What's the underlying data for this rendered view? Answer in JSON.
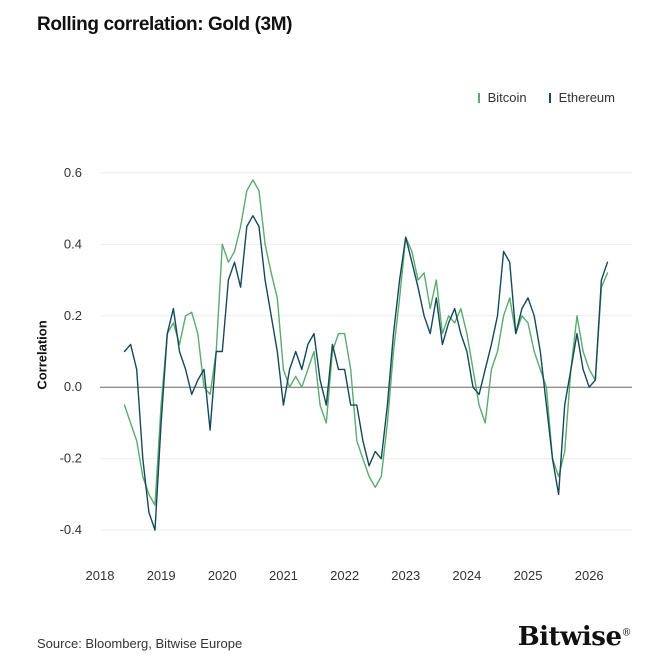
{
  "chart_data": {
    "type": "line",
    "title": "Rolling correlation: Gold (3M)",
    "ylabel": "Correlation",
    "xlabel": "",
    "ylim": [
      -0.45,
      0.65
    ],
    "xlim": [
      2018.0,
      2026.7
    ],
    "yticks": [
      "0.6",
      "0.4",
      "0.2",
      "0.0",
      "-0.2",
      "-0.4"
    ],
    "xticks": [
      "2018",
      "2019",
      "2020",
      "2021",
      "2022",
      "2023",
      "2024",
      "2025",
      "2026"
    ],
    "legend_position": "top-right",
    "grid": "horizontal",
    "series": [
      {
        "name": "Bitcoin",
        "color": "#5aab6e",
        "x": [
          2018.4,
          2018.5,
          2018.6,
          2018.7,
          2018.8,
          2018.9,
          2019.0,
          2019.1,
          2019.2,
          2019.3,
          2019.4,
          2019.5,
          2019.6,
          2019.7,
          2019.8,
          2019.9,
          2020.0,
          2020.1,
          2020.2,
          2020.3,
          2020.4,
          2020.5,
          2020.6,
          2020.7,
          2020.8,
          2020.9,
          2021.0,
          2021.1,
          2021.2,
          2021.3,
          2021.4,
          2021.5,
          2021.6,
          2021.7,
          2021.8,
          2021.9,
          2022.0,
          2022.1,
          2022.2,
          2022.3,
          2022.4,
          2022.5,
          2022.6,
          2022.7,
          2022.8,
          2022.9,
          2023.0,
          2023.1,
          2023.2,
          2023.3,
          2023.4,
          2023.5,
          2023.6,
          2023.7,
          2023.8,
          2023.9,
          2024.0,
          2024.1,
          2024.2,
          2024.3,
          2024.4,
          2024.5,
          2024.6,
          2024.7,
          2024.8,
          2024.9,
          2025.0,
          2025.1,
          2025.2,
          2025.3,
          2025.4,
          2025.5,
          2025.6,
          2025.7,
          2025.8,
          2025.9,
          2026.0,
          2026.1,
          2026.2,
          2026.3
        ],
        "values": [
          -0.05,
          -0.1,
          -0.15,
          -0.25,
          -0.3,
          -0.33,
          -0.05,
          0.15,
          0.18,
          0.12,
          0.2,
          0.21,
          0.15,
          0.0,
          -0.02,
          0.1,
          0.4,
          0.35,
          0.38,
          0.45,
          0.55,
          0.58,
          0.55,
          0.4,
          0.32,
          0.25,
          0.05,
          0.0,
          0.03,
          0.0,
          0.05,
          0.1,
          -0.05,
          -0.1,
          0.1,
          0.15,
          0.15,
          0.05,
          -0.15,
          -0.2,
          -0.25,
          -0.28,
          -0.25,
          -0.1,
          0.1,
          0.25,
          0.42,
          0.38,
          0.3,
          0.32,
          0.22,
          0.3,
          0.15,
          0.2,
          0.18,
          0.22,
          0.15,
          0.05,
          -0.05,
          -0.1,
          0.05,
          0.1,
          0.2,
          0.25,
          0.15,
          0.2,
          0.18,
          0.1,
          0.05,
          0.0,
          -0.2,
          -0.25,
          -0.18,
          0.05,
          0.2,
          0.1,
          0.05,
          0.02,
          0.28,
          0.32
        ]
      },
      {
        "name": "Ethereum",
        "color": "#14495a",
        "x": [
          2018.4,
          2018.5,
          2018.6,
          2018.7,
          2018.8,
          2018.9,
          2019.0,
          2019.1,
          2019.2,
          2019.3,
          2019.4,
          2019.5,
          2019.6,
          2019.7,
          2019.8,
          2019.9,
          2020.0,
          2020.1,
          2020.2,
          2020.3,
          2020.4,
          2020.5,
          2020.6,
          2020.7,
          2020.8,
          2020.9,
          2021.0,
          2021.1,
          2021.2,
          2021.3,
          2021.4,
          2021.5,
          2021.6,
          2021.7,
          2021.8,
          2021.9,
          2022.0,
          2022.1,
          2022.2,
          2022.3,
          2022.4,
          2022.5,
          2022.6,
          2022.7,
          2022.8,
          2022.9,
          2023.0,
          2023.1,
          2023.2,
          2023.3,
          2023.4,
          2023.5,
          2023.6,
          2023.7,
          2023.8,
          2023.9,
          2024.0,
          2024.1,
          2024.2,
          2024.3,
          2024.4,
          2024.5,
          2024.6,
          2024.7,
          2024.8,
          2024.9,
          2025.0,
          2025.1,
          2025.2,
          2025.3,
          2025.4,
          2025.5,
          2025.6,
          2025.7,
          2025.8,
          2025.9,
          2026.0,
          2026.1,
          2026.2,
          2026.3
        ],
        "values": [
          0.1,
          0.12,
          0.05,
          -0.2,
          -0.35,
          -0.4,
          -0.1,
          0.15,
          0.22,
          0.1,
          0.05,
          -0.02,
          0.02,
          0.05,
          -0.12,
          0.1,
          0.1,
          0.3,
          0.35,
          0.28,
          0.45,
          0.48,
          0.45,
          0.3,
          0.2,
          0.1,
          -0.05,
          0.05,
          0.1,
          0.05,
          0.12,
          0.15,
          0.02,
          -0.05,
          0.12,
          0.05,
          0.05,
          -0.05,
          -0.05,
          -0.15,
          -0.22,
          -0.18,
          -0.2,
          -0.05,
          0.15,
          0.3,
          0.42,
          0.35,
          0.28,
          0.2,
          0.15,
          0.25,
          0.12,
          0.18,
          0.22,
          0.15,
          0.1,
          0.0,
          -0.02,
          0.05,
          0.12,
          0.2,
          0.38,
          0.35,
          0.15,
          0.22,
          0.25,
          0.2,
          0.1,
          -0.05,
          -0.2,
          -0.3,
          -0.05,
          0.05,
          0.15,
          0.05,
          0.0,
          0.02,
          0.3,
          0.35
        ]
      }
    ]
  },
  "footer": {
    "source": "Source: Bloomberg, Bitwise Europe",
    "brand": "Bitwise",
    "brand_mark": "®"
  }
}
